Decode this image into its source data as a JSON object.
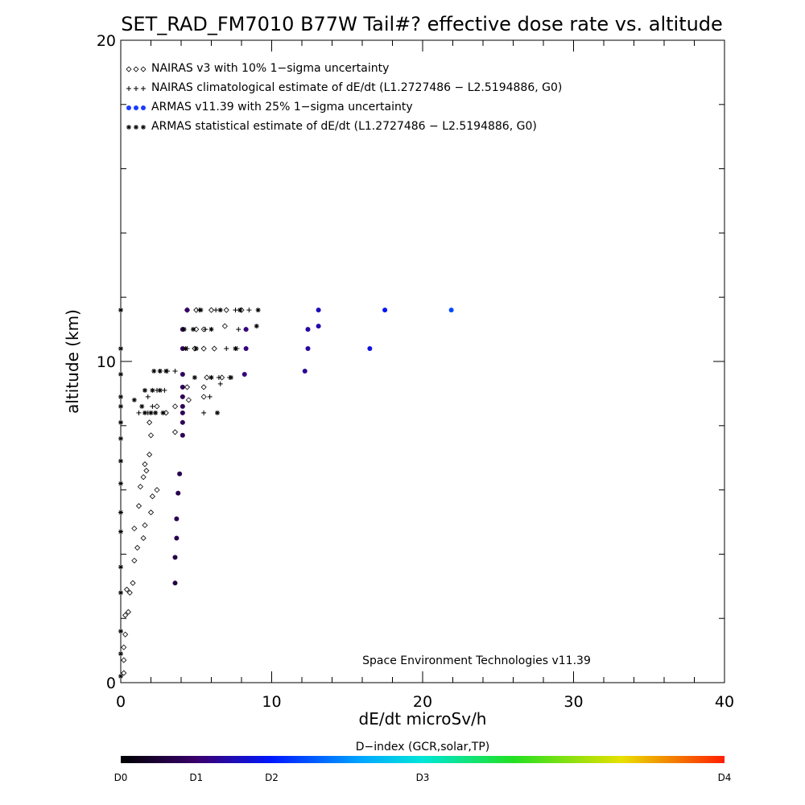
{
  "chart_data": {
    "type": "scatter",
    "title": "SET_RAD_FM7010  B77W Tail#? effective dose rate vs. altitude",
    "xlabel": "dE/dt microSv/h",
    "ylabel": "altitude (km)",
    "xlim": [
      0,
      40
    ],
    "ylim": [
      0,
      20
    ],
    "x_ticks": [
      "0",
      "10",
      "20",
      "30",
      "40"
    ],
    "y_ticks": [
      "0",
      "10",
      "20"
    ],
    "credit": "Space Environment Technologies v11.39",
    "colorbar": {
      "title": "D−index (GCR,solar,TP)",
      "labels": [
        "D0",
        "D1",
        "D2",
        "D3",
        "D4"
      ],
      "positions": [
        0,
        0.125,
        0.25,
        0.5,
        1.0
      ]
    },
    "legend": [
      {
        "label": "NAIRAS v3 with 10% 1−sigma uncertainty",
        "symbol": "diamond"
      },
      {
        "label": "NAIRAS climatological estimate of dE/dt (L1.2727486 − L2.5194886, G0)",
        "symbol": "plus"
      },
      {
        "label": "ARMAS v11.39 with 25% 1−sigma uncertainty",
        "symbol": "dot"
      },
      {
        "label": "ARMAS statistical estimate of dE/dt (L1.2727486 − L2.5194886, G0)",
        "symbol": "asterisk"
      }
    ],
    "series": [
      {
        "name": "NAIRAS v3 with 10% 1−sigma uncertainty",
        "symbol": "diamond",
        "points": [
          [
            0.2,
            0.3
          ],
          [
            0.2,
            0.7
          ],
          [
            0.2,
            1.1
          ],
          [
            0.3,
            1.5
          ],
          [
            0.3,
            2.1
          ],
          [
            0.5,
            2.2
          ],
          [
            0.4,
            2.9
          ],
          [
            0.6,
            2.8
          ],
          [
            0.8,
            3.1
          ],
          [
            0.9,
            3.8
          ],
          [
            1.1,
            4.2
          ],
          [
            1.5,
            4.5
          ],
          [
            0.9,
            4.8
          ],
          [
            1.6,
            4.9
          ],
          [
            2.0,
            5.3
          ],
          [
            1.2,
            5.5
          ],
          [
            2.1,
            5.8
          ],
          [
            1.3,
            6.1
          ],
          [
            2.4,
            6.0
          ],
          [
            1.5,
            6.4
          ],
          [
            1.7,
            6.6
          ],
          [
            1.6,
            6.8
          ],
          [
            1.9,
            7.1
          ],
          [
            2.0,
            7.7
          ],
          [
            1.9,
            8.1
          ],
          [
            3.6,
            7.8
          ],
          [
            2.4,
            8.6
          ],
          [
            3.0,
            8.4
          ],
          [
            3.6,
            8.6
          ],
          [
            4.5,
            8.8
          ],
          [
            5.5,
            8.9
          ],
          [
            4.4,
            9.2
          ],
          [
            5.5,
            9.2
          ],
          [
            5.7,
            9.5
          ],
          [
            6.7,
            9.5
          ],
          [
            4.9,
            10.4
          ],
          [
            5.5,
            10.4
          ],
          [
            6.2,
            10.4
          ],
          [
            5.0,
            11.0
          ],
          [
            5.5,
            11.0
          ],
          [
            6.9,
            11.1
          ],
          [
            4.4,
            11.6
          ],
          [
            5.0,
            11.6
          ],
          [
            6.0,
            11.6
          ],
          [
            7.0,
            11.6
          ],
          [
            8.0,
            11.6
          ]
        ]
      },
      {
        "name": "NAIRAS climatological estimate of dE/dt (L1.2727486 − L2.5194886, G0)",
        "symbol": "plus",
        "points": [
          [
            1.2,
            8.4
          ],
          [
            1.8,
            8.4
          ],
          [
            2.1,
            8.6
          ],
          [
            1.8,
            8.9
          ],
          [
            2.4,
            9.1
          ],
          [
            2.9,
            9.1
          ],
          [
            2.6,
            9.7
          ],
          [
            3.1,
            9.7
          ],
          [
            3.6,
            9.7
          ],
          [
            5.5,
            8.4
          ],
          [
            5.9,
            8.9
          ],
          [
            6.6,
            9.3
          ],
          [
            6.5,
            9.5
          ],
          [
            7.2,
            9.5
          ],
          [
            7.7,
            10.4
          ],
          [
            7.0,
            10.4
          ],
          [
            4.4,
            10.4
          ],
          [
            5.6,
            11.0
          ],
          [
            7.8,
            11.0
          ],
          [
            8.3,
            11.0
          ],
          [
            5.2,
            11.6
          ],
          [
            6.3,
            11.6
          ],
          [
            7.6,
            11.6
          ],
          [
            8.5,
            11.6
          ]
        ]
      },
      {
        "name": "ARMAS v11.39 with 25% 1−sigma uncertainty",
        "symbol": "dot",
        "points": [
          [
            3.6,
            3.1
          ],
          [
            3.6,
            3.9
          ],
          [
            3.7,
            4.5
          ],
          [
            3.7,
            5.1
          ],
          [
            3.8,
            5.9
          ],
          [
            3.9,
            6.5
          ],
          [
            4.1,
            7.7
          ],
          [
            4.1,
            8.1
          ],
          [
            4.1,
            8.4
          ],
          [
            4.1,
            8.6
          ],
          [
            4.1,
            8.9
          ],
          [
            4.1,
            9.2
          ],
          [
            4.1,
            9.6
          ],
          [
            4.1,
            10.4
          ],
          [
            4.1,
            11.0
          ],
          [
            4.4,
            11.6
          ],
          [
            8.2,
            9.6
          ],
          [
            8.3,
            10.4
          ],
          [
            8.3,
            11.0
          ],
          [
            12.2,
            9.7
          ],
          [
            12.4,
            10.4
          ],
          [
            12.4,
            11.0
          ],
          [
            13.1,
            11.1
          ],
          [
            13.1,
            11.6
          ],
          [
            16.5,
            10.4
          ],
          [
            17.5,
            11.6
          ],
          [
            21.9,
            11.6
          ]
        ],
        "dindex": [
          0.08,
          0.08,
          0.09,
          0.09,
          0.09,
          0.09,
          0.1,
          0.1,
          0.1,
          0.1,
          0.1,
          0.1,
          0.11,
          0.11,
          0.11,
          0.12,
          0.14,
          0.14,
          0.14,
          0.16,
          0.17,
          0.17,
          0.18,
          0.19,
          0.22,
          0.24,
          0.3
        ]
      },
      {
        "name": "ARMAS statistical estimate of dE/dt (L1.2727486 − L2.5194886, G0)",
        "symbol": "asterisk",
        "points": [
          [
            0.0,
            0.2
          ],
          [
            0.0,
            0.9
          ],
          [
            0.0,
            1.6
          ],
          [
            0.0,
            2.8
          ],
          [
            0.0,
            3.6
          ],
          [
            0.0,
            4.7
          ],
          [
            0.0,
            5.3
          ],
          [
            0.0,
            6.2
          ],
          [
            0.0,
            6.9
          ],
          [
            0.0,
            7.6
          ],
          [
            0.0,
            8.1
          ],
          [
            0.0,
            8.6
          ],
          [
            0.0,
            8.9
          ],
          [
            0.0,
            9.6
          ],
          [
            0.0,
            10.4
          ],
          [
            0.0,
            11.6
          ],
          [
            0.9,
            8.8
          ],
          [
            1.4,
            8.6
          ],
          [
            1.6,
            8.4
          ],
          [
            2.0,
            8.4
          ],
          [
            2.3,
            8.4
          ],
          [
            2.8,
            8.4
          ],
          [
            1.6,
            9.1
          ],
          [
            2.1,
            9.1
          ],
          [
            2.6,
            9.1
          ],
          [
            2.2,
            9.7
          ],
          [
            2.6,
            9.7
          ],
          [
            3.0,
            9.7
          ],
          [
            4.9,
            9.5
          ],
          [
            6.0,
            9.5
          ],
          [
            7.3,
            9.5
          ],
          [
            6.4,
            8.4
          ],
          [
            4.3,
            10.4
          ],
          [
            5.0,
            10.4
          ],
          [
            7.6,
            10.4
          ],
          [
            4.2,
            11.0
          ],
          [
            4.8,
            11.0
          ],
          [
            6.0,
            11.0
          ],
          [
            9.0,
            11.1
          ],
          [
            5.3,
            11.6
          ],
          [
            6.6,
            11.6
          ],
          [
            7.9,
            11.6
          ],
          [
            9.1,
            11.6
          ]
        ]
      }
    ]
  }
}
